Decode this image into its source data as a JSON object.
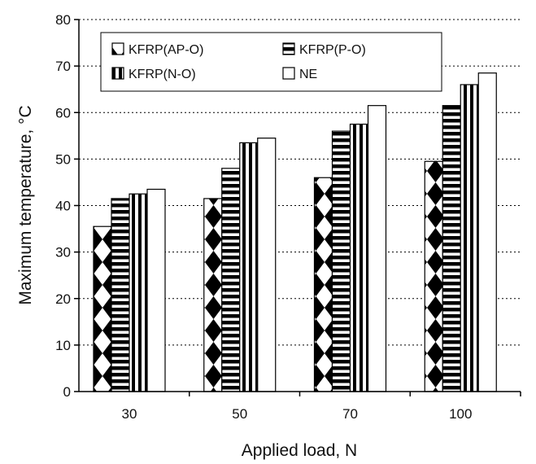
{
  "chart_data": {
    "type": "bar",
    "categories": [
      "30",
      "50",
      "70",
      "100"
    ],
    "series": [
      {
        "name": "KFRP(AP-O)",
        "values": [
          35.5,
          41.5,
          46,
          49.5
        ],
        "pattern": "diamond-checker"
      },
      {
        "name": "KFRP(P-O)",
        "values": [
          41.5,
          48,
          56,
          61.5
        ],
        "pattern": "horizontal-stripes"
      },
      {
        "name": "KFRP(N-O)",
        "values": [
          42.5,
          53.5,
          57.5,
          66
        ],
        "pattern": "vertical-stripes"
      },
      {
        "name": "NE",
        "values": [
          43.5,
          54.5,
          61.5,
          68.5
        ],
        "pattern": "solid-white"
      }
    ],
    "xlabel": "Applied load, N",
    "ylabel": "Maximum temperature, °C",
    "ylim": [
      0,
      80
    ],
    "yticks": [
      0,
      10,
      20,
      30,
      40,
      50,
      60,
      70,
      80
    ],
    "grid": "horizontal dotted",
    "legend_position": "top-left",
    "bar_color": "#000000",
    "background": "#ffffff"
  }
}
